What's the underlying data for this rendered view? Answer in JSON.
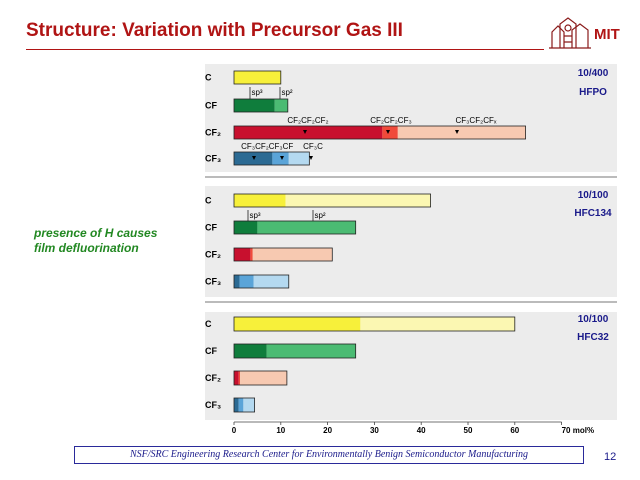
{
  "slide": {
    "title": "Structure: Variation with Precursor Gas III",
    "logo_text": "MIT",
    "side_note_line1": "presence of H causes",
    "side_note_line2": "film defluorination",
    "footer": "NSF/SRC Engineering Research Center for Environmentally Benign Semiconductor Manufacturing",
    "page_number": "12"
  },
  "colors": {
    "title": "#b01414",
    "panel_bg": "#ececec",
    "C": [
      "#f7f03a",
      "#fbf7b2"
    ],
    "CF": [
      "#0f7d3c",
      "#4bbb73"
    ],
    "CF2": [
      "#c8102e",
      "#f04a3a",
      "#f7c9b1"
    ],
    "CF3": [
      "#2b6a93",
      "#5aa4d8",
      "#b4d9f0"
    ]
  },
  "chart_data": {
    "type": "bar",
    "orientation": "horizontal-stacked",
    "x_axis": {
      "ticks": [
        "0",
        "10",
        "20",
        "30",
        "40",
        "50",
        "60",
        "70 mol%"
      ],
      "xlim": [
        0,
        70
      ]
    },
    "panels": [
      {
        "label_line1": "10/400",
        "label_line2": "HFPO",
        "rows": [
          {
            "category": "C",
            "segments": [
              10
            ],
            "annotations": [
              "sp³",
              "sp²"
            ]
          },
          {
            "category": "CF",
            "segments": [
              8.7,
              2.8
            ]
          },
          {
            "category": "CF₂",
            "segments": [
              31.7,
              3.3,
              27.3
            ],
            "annotations": [
              "CF₂CF₂CF₂",
              "CF₂CF₂CF₃",
              "CF₃CF₂CFₓ"
            ]
          },
          {
            "category": "CF₃",
            "segments": [
              8.2,
              3.5,
              4.4
            ],
            "annotations": [
              "CF₃CF₂",
              "CF₃CF",
              "CF₃C"
            ]
          }
        ]
      },
      {
        "label_line1": "10/100",
        "label_line2": "HFC134",
        "rows": [
          {
            "category": "C",
            "segments": [
              11,
              31
            ],
            "annotations": [
              "sp³",
              "sp²"
            ]
          },
          {
            "category": "CF",
            "segments": [
              5,
              21
            ]
          },
          {
            "category": "CF₂",
            "segments": [
              3.5,
              0.5,
              17
            ]
          },
          {
            "category": "CF₃",
            "segments": [
              1.2,
              3,
              7.5
            ]
          }
        ]
      },
      {
        "label_line1": "10/100",
        "label_line2": "HFC32",
        "rows": [
          {
            "category": "C",
            "segments": [
              27,
              33
            ]
          },
          {
            "category": "CF",
            "segments": [
              7,
              19
            ]
          },
          {
            "category": "CF₂",
            "segments": [
              1,
              0.3,
              10
            ]
          },
          {
            "category": "CF₃",
            "segments": [
              1,
              1,
              2.4
            ]
          }
        ]
      }
    ]
  }
}
